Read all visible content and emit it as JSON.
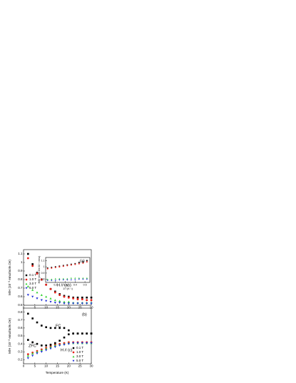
{
  "chart_data": [
    {
      "type": "scatter",
      "annotations": [
        "(a)",
        "H // (ab)"
      ],
      "ylabel": "M/H (10⁻³ emu/mole.Oe)",
      "x": [
        2,
        4,
        6,
        8,
        10,
        12,
        14,
        16,
        18,
        20,
        22,
        24,
        26,
        28,
        30
      ],
      "xlim": [
        0,
        30
      ],
      "xticks": [
        0,
        5,
        10,
        15,
        20,
        25,
        30
      ],
      "ylim": [
        0.5,
        1.15
      ],
      "yticks": [
        0.5,
        0.6,
        0.7,
        0.8,
        0.9,
        1.0,
        1.1
      ],
      "series": [
        {
          "name": "0.1 T",
          "color": "#000000",
          "values": [
            1.1,
            0.98,
            0.88,
            0.8,
            0.74,
            0.69,
            0.66,
            0.63,
            0.61,
            0.6,
            0.59,
            0.59,
            0.59,
            0.59,
            0.59
          ]
        },
        {
          "name": "1.0 T",
          "color": "#e8231c",
          "values": [
            1.05,
            0.96,
            0.87,
            0.8,
            0.74,
            0.69,
            0.65,
            0.62,
            0.6,
            0.59,
            0.58,
            0.57,
            0.57,
            0.56,
            0.56
          ]
        },
        {
          "name": "3.0 T",
          "color": "#2fd12f",
          "values": [
            0.72,
            0.68,
            0.65,
            0.62,
            0.6,
            0.58,
            0.56,
            0.55,
            0.54,
            0.54,
            0.53,
            0.53,
            0.53,
            0.53,
            0.53
          ]
        },
        {
          "name": "5.0 T",
          "color": "#1f2fd6",
          "values": [
            0.62,
            0.6,
            0.58,
            0.56,
            0.55,
            0.54,
            0.53,
            0.53,
            0.52,
            0.52,
            0.52,
            0.52,
            0.52,
            0.52,
            0.52
          ]
        }
      ]
    },
    {
      "type": "scatter",
      "xlabel": "1/T (K⁻¹)",
      "ylabel": "H/M (mole.Oe/10⁻³ emu)",
      "x": [
        0.12,
        0.16,
        0.2,
        0.24,
        0.28,
        0.32,
        0.36,
        0.4,
        0.44,
        0.48,
        0.52
      ],
      "xlim": [
        0.1,
        0.55
      ],
      "xticks": [
        0.2,
        0.3,
        0.4,
        0.5
      ],
      "ylim": [
        0.75,
        1.15
      ],
      "yticks": [
        0.8,
        0.9,
        1.0,
        1.1
      ],
      "series": [
        {
          "color": "#000000",
          "values": [
            0.98,
            0.99,
            1.0,
            1.01,
            1.02,
            1.03,
            1.04,
            1.05,
            1.07,
            1.08,
            1.1
          ]
        },
        {
          "color": "#e8231c",
          "values": [
            0.97,
            0.98,
            0.99,
            1.0,
            1.01,
            1.02,
            1.03,
            1.04,
            1.05,
            1.06,
            1.08
          ]
        },
        {
          "color": "#2fd12f",
          "values": [
            0.8,
            0.8,
            0.81,
            0.81,
            0.81,
            0.81,
            0.82,
            0.82,
            0.82,
            0.82,
            0.82
          ]
        },
        {
          "color": "#1f2fd6",
          "values": [
            0.78,
            0.78,
            0.78,
            0.79,
            0.79,
            0.79,
            0.79,
            0.79,
            0.8,
            0.8,
            0.8
          ]
        }
      ]
    },
    {
      "type": "scatter",
      "annotations": [
        "(b)",
        "FC",
        "ZFC",
        "H // (c)"
      ],
      "xlabel": "Temperature (K)",
      "ylabel": "M/H (10⁻³ emu/mole.Oe)",
      "x": [
        2,
        4,
        6,
        8,
        10,
        12,
        14,
        16,
        18,
        20,
        22,
        24,
        26,
        28,
        30
      ],
      "xlim": [
        0,
        30
      ],
      "xticks": [
        0,
        5,
        10,
        15,
        20,
        25,
        30
      ],
      "ylim": [
        0.15,
        0.85
      ],
      "yticks": [
        0.2,
        0.3,
        0.4,
        0.5,
        0.6,
        0.7,
        0.8
      ],
      "series": [
        {
          "name": "0.1 T",
          "color": "#000000",
          "values": [
            0.78,
            0.72,
            0.67,
            0.63,
            0.61,
            0.6,
            0.6,
            0.6,
            0.6,
            0.57,
            0.53,
            0.53,
            0.53,
            0.53,
            0.53
          ]
        },
        {
          "name": "1.0 T",
          "color": "#e8231c",
          "values": [
            0.27,
            0.29,
            0.31,
            0.33,
            0.35,
            0.37,
            0.39,
            0.4,
            0.41,
            0.42,
            0.42,
            0.42,
            0.42,
            0.42,
            0.42
          ]
        },
        {
          "name": "3.0 T",
          "color": "#2fd12f",
          "values": [
            0.25,
            0.28,
            0.3,
            0.32,
            0.34,
            0.36,
            0.38,
            0.39,
            0.4,
            0.41,
            0.41,
            0.41,
            0.41,
            0.41,
            0.41
          ]
        },
        {
          "name": "5.0 T",
          "color": "#1f2fd6",
          "values": [
            0.22,
            0.25,
            0.28,
            0.3,
            0.32,
            0.34,
            0.36,
            0.38,
            0.39,
            0.4,
            0.41,
            0.41,
            0.41,
            0.41,
            0.41
          ]
        },
        {
          "color": "#000000",
          "values": [
            0.45,
            0.42,
            0.4,
            0.38,
            0.38,
            0.39,
            0.41,
            0.44,
            0.48,
            0.52,
            0.53,
            0.53,
            0.53,
            0.53,
            0.53
          ]
        }
      ]
    }
  ]
}
